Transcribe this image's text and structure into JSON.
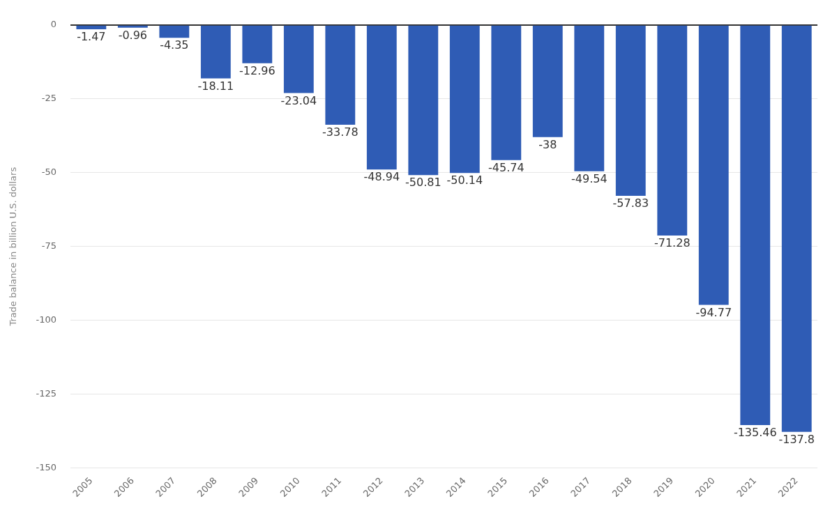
{
  "chart_data": {
    "type": "bar",
    "ylabel": "Trade balance in billion U.S. dollars",
    "categories": [
      "2005",
      "2006",
      "2007",
      "2008",
      "2009",
      "2010",
      "2011",
      "2012",
      "2013",
      "2014",
      "2015",
      "2016",
      "2017",
      "2018",
      "2019",
      "2020",
      "2021",
      "2022"
    ],
    "values": [
      -1.47,
      -0.96,
      -4.35,
      -18.11,
      -12.96,
      -23.04,
      -33.78,
      -48.94,
      -50.81,
      -50.14,
      -45.74,
      -38,
      -49.54,
      -57.83,
      -71.28,
      -94.77,
      -135.46,
      -137.8
    ],
    "color": "#2f5cb5",
    "ylim": [
      -150,
      0
    ],
    "yticks": [
      0,
      -25,
      -50,
      -75,
      -100,
      -125,
      -150
    ],
    "grid": "y",
    "data_labels": true,
    "legend": false
  }
}
